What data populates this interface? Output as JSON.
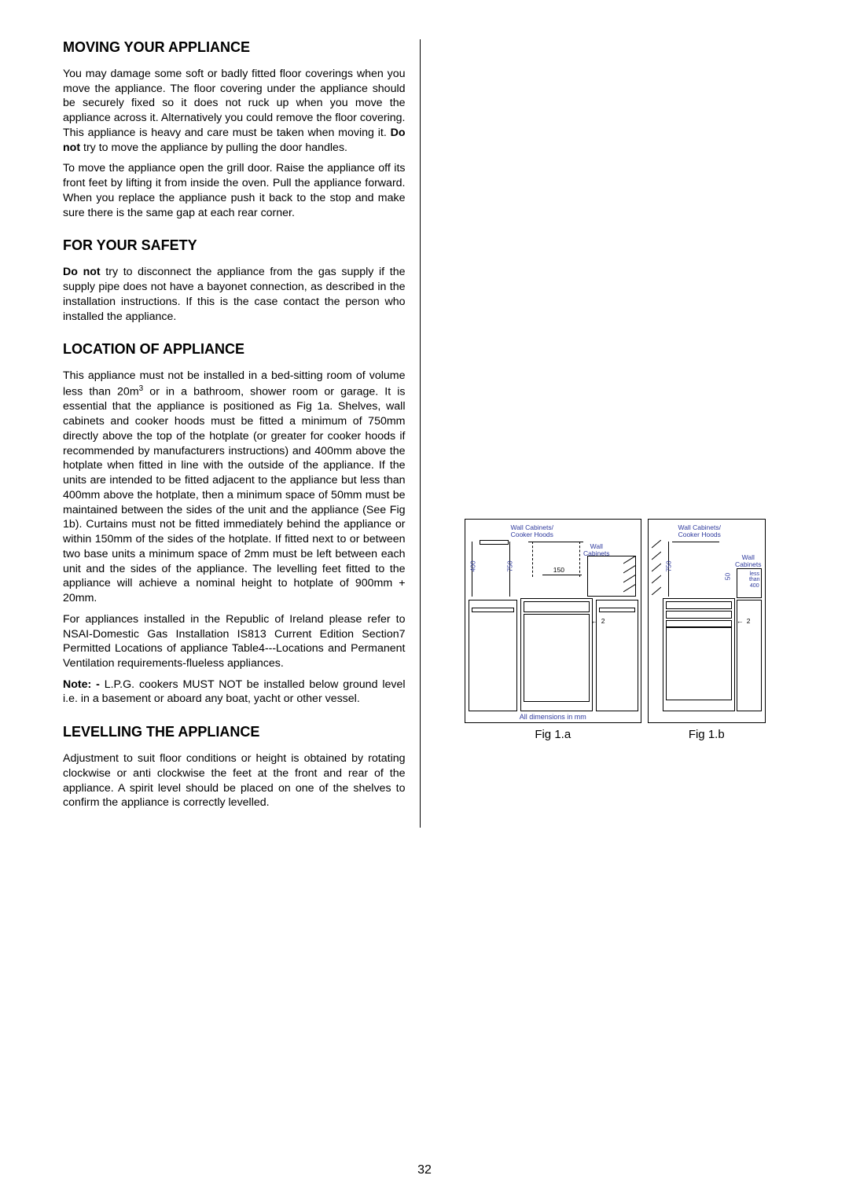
{
  "page_number": "32",
  "sections": {
    "moving": {
      "heading": "MOVING YOUR APPLIANCE",
      "p1_a": "You may damage some soft or badly fitted floor coverings when you move the appliance.  The floor covering under the appliance should be securely fixed so it does not ruck up when you move the appliance across it.  Alternatively you could remove the floor covering.  This appliance is heavy and care must be taken when moving it.  ",
      "p1_bold": "Do not",
      "p1_b": " try to move the appliance by pulling the door handles.",
      "p2": "To move the appliance open the grill door.  Raise the appliance off its front feet by lifting it from inside the oven.  Pull the appliance forward.  When you replace the appliance push it back to the stop and make sure there is the same gap at each rear corner."
    },
    "safety": {
      "heading": "FOR YOUR SAFETY",
      "p1_bold": "Do not",
      "p1": " try to disconnect the appliance from the gas supply if the supply pipe does not have a bayonet connection, as described in the installation instructions. If this is the case contact the person who installed the appliance."
    },
    "location": {
      "heading": "LOCATION OF APPLIANCE",
      "p1_a": "This appliance must not be installed in a bed-sitting room of volume less than 20m",
      "p1_sup": "3",
      "p1_b": " or in a bathroom, shower room or  garage.  It is essential that the appliance is positioned as Fig 1a.  Shelves, wall cabinets and cooker hoods must be fitted a minimum of 750mm directly above the top of the hotplate (or greater for cooker hoods if recommended by manufacturers instructions) and 400mm above the hotplate when fitted in  line with the outside of the appliance. If the units are intended to be fitted adjacent to the appliance but less than 400mm above the hotplate, then a minimum space of 50mm must be maintained between the sides of the unit and the appliance  (See Fig 1b). Curtains must not be fitted immediately behind the appliance or within 150mm of the sides of the hotplate. If fitted next to or between two base units a minimum space of 2mm must be left between each unit and the sides of the appliance.  The levelling feet fitted to the appliance will achieve a nominal height to hotplate of 900mm + 20mm.",
      "p2": "For appliances installed in the Republic of Ireland please refer to NSAI-Domestic Gas Installation IS813 Current Edition Section7 Permitted Locations of appliance Table4---Locations and Permanent Ventilation requirements-flueless appliances.",
      "p3_bold": "Note: -",
      "p3": " L.P.G. cookers MUST NOT be installed below ground level i.e. in a basement or aboard any boat, yacht or other vessel."
    },
    "levelling": {
      "heading": "LEVELLING THE APPLIANCE",
      "p1": "Adjustment to suit floor conditions or height is obtained by rotating clockwise or anti clockwise the feet at the front and rear of the appliance.  A spirit level should be placed on one of the shelves to confirm the appliance is correctly levelled."
    }
  },
  "figures": {
    "labels": {
      "wall_cab_hoods": "Wall Cabinets/\nCooker Hoods",
      "wall_cab": "Wall\nCabinets",
      "less_than_400": "less\nthan\n400",
      "all_dim": "All dimensions in mm"
    },
    "dims": {
      "d400": "400",
      "d750": "750",
      "d150": "150",
      "d50": "50",
      "d2": "2"
    },
    "captions": {
      "a": "Fig 1.a",
      "b": "Fig 1.b"
    }
  }
}
